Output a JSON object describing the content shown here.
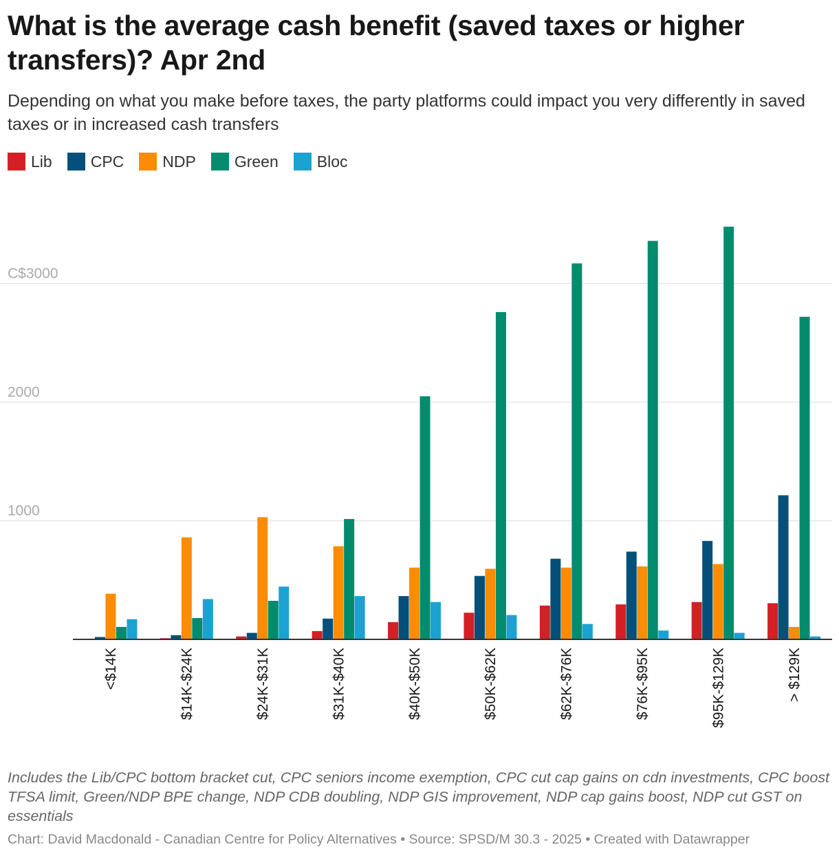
{
  "chart_data": {
    "type": "bar",
    "title": "What is the average cash benefit (saved taxes or higher transfers)? Apr 2nd",
    "subtitle": "Depending on what you make before taxes, the party platforms could impact you very differently in saved taxes or in increased cash transfers",
    "categories": [
      "<$14K",
      "$14K-$24K",
      "$24K-$31K",
      "$31K-$40K",
      "$40K-$50K",
      "$50K-$62K",
      "$62K-$76K",
      "$76K-$95K",
      "$95K-$129K",
      "> $129K"
    ],
    "series": [
      {
        "name": "Lib",
        "color": "#d32026",
        "values": [
          0,
          10,
          25,
          70,
          145,
          225,
          285,
          295,
          315,
          305
        ]
      },
      {
        "name": "CPC",
        "color": "#04507a",
        "values": [
          20,
          35,
          55,
          175,
          365,
          535,
          680,
          740,
          830,
          1215
        ]
      },
      {
        "name": "NDP",
        "color": "#fb8c04",
        "values": [
          385,
          860,
          1030,
          785,
          605,
          595,
          605,
          615,
          635,
          105
        ]
      },
      {
        "name": "Green",
        "color": "#038b6e",
        "values": [
          105,
          180,
          325,
          1015,
          2050,
          2760,
          3170,
          3360,
          3480,
          2720
        ]
      },
      {
        "name": "Bloc",
        "color": "#1ba2d3",
        "values": [
          170,
          340,
          445,
          365,
          315,
          205,
          130,
          75,
          55,
          25
        ]
      }
    ],
    "xlabel": "",
    "ylabel": "",
    "ylim": [
      0,
      3500
    ],
    "yticks": [
      1000,
      2000,
      3000
    ],
    "ytick_labels": [
      "1000",
      "2000",
      "C$3000"
    ],
    "grid": true,
    "legend": "top-left"
  },
  "notes": "Includes the Lib/CPC bottom bracket cut, CPC seniors income exemption, CPC cut cap gains on cdn investments, CPC boost TFSA limit, Green/NDP BPE change, NDP CDB doubling, NDP GIS improvement, NDP cap gains boost, NDP cut GST on essentials",
  "footer": "Chart: David Macdonald - Canadian Centre for Policy Alternatives • Source: SPSD/M 30.3 - 2025 • Created with Datawrapper"
}
